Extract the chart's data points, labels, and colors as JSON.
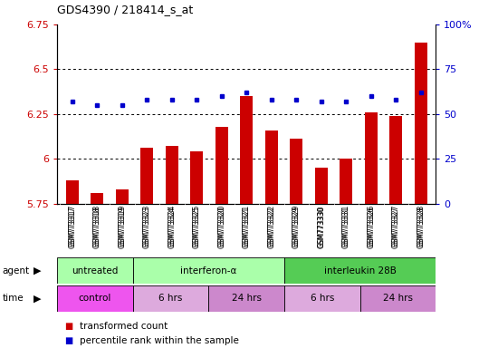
{
  "title": "GDS4390 / 218414_s_at",
  "samples": [
    "GSM773317",
    "GSM773318",
    "GSM773319",
    "GSM773323",
    "GSM773324",
    "GSM773325",
    "GSM773320",
    "GSM773321",
    "GSM773322",
    "GSM773329",
    "GSM773330",
    "GSM773331",
    "GSM773326",
    "GSM773327",
    "GSM773328"
  ],
  "red_values": [
    5.88,
    5.81,
    5.83,
    6.06,
    6.07,
    6.04,
    6.18,
    6.35,
    6.16,
    6.11,
    5.95,
    6.0,
    6.26,
    6.24,
    6.65
  ],
  "blue_values": [
    57,
    55,
    55,
    58,
    58,
    58,
    60,
    62,
    58,
    58,
    57,
    57,
    60,
    58,
    62
  ],
  "ylim_left": [
    5.75,
    6.75
  ],
  "ylim_right": [
    0,
    100
  ],
  "yticks_left": [
    5.75,
    6.0,
    6.25,
    6.5,
    6.75
  ],
  "yticks_right": [
    0,
    25,
    50,
    75,
    100
  ],
  "ytick_labels_left": [
    "5.75",
    "6",
    "6.25",
    "6.5",
    "6.75"
  ],
  "ytick_labels_right": [
    "0",
    "25",
    "50",
    "75",
    "100%"
  ],
  "gridlines": [
    6.0,
    6.25,
    6.5
  ],
  "agent_groups": [
    {
      "label": "untreated",
      "start": 0,
      "end": 3,
      "color": "#aaffaa"
    },
    {
      "label": "interferon-α",
      "start": 3,
      "end": 9,
      "color": "#aaffaa"
    },
    {
      "label": "interleukin 28B",
      "start": 9,
      "end": 15,
      "color": "#55cc55"
    }
  ],
  "time_groups": [
    {
      "label": "control",
      "start": 0,
      "end": 3,
      "color": "#ee55ee"
    },
    {
      "label": "6 hrs",
      "start": 3,
      "end": 6,
      "color": "#ddaadd"
    },
    {
      "label": "24 hrs",
      "start": 6,
      "end": 9,
      "color": "#cc88cc"
    },
    {
      "label": "6 hrs",
      "start": 9,
      "end": 12,
      "color": "#ddaadd"
    },
    {
      "label": "24 hrs",
      "start": 12,
      "end": 15,
      "color": "#cc88cc"
    }
  ],
  "bar_color": "#cc0000",
  "dot_color": "#0000cc",
  "bar_width": 0.5,
  "tick_label_color_left": "#cc0000",
  "tick_label_color_right": "#0000cc",
  "legend": [
    {
      "label": "transformed count",
      "color": "#cc0000"
    },
    {
      "label": "percentile rank within the sample",
      "color": "#0000cc"
    }
  ],
  "sample_bg_color": "#dddddd"
}
